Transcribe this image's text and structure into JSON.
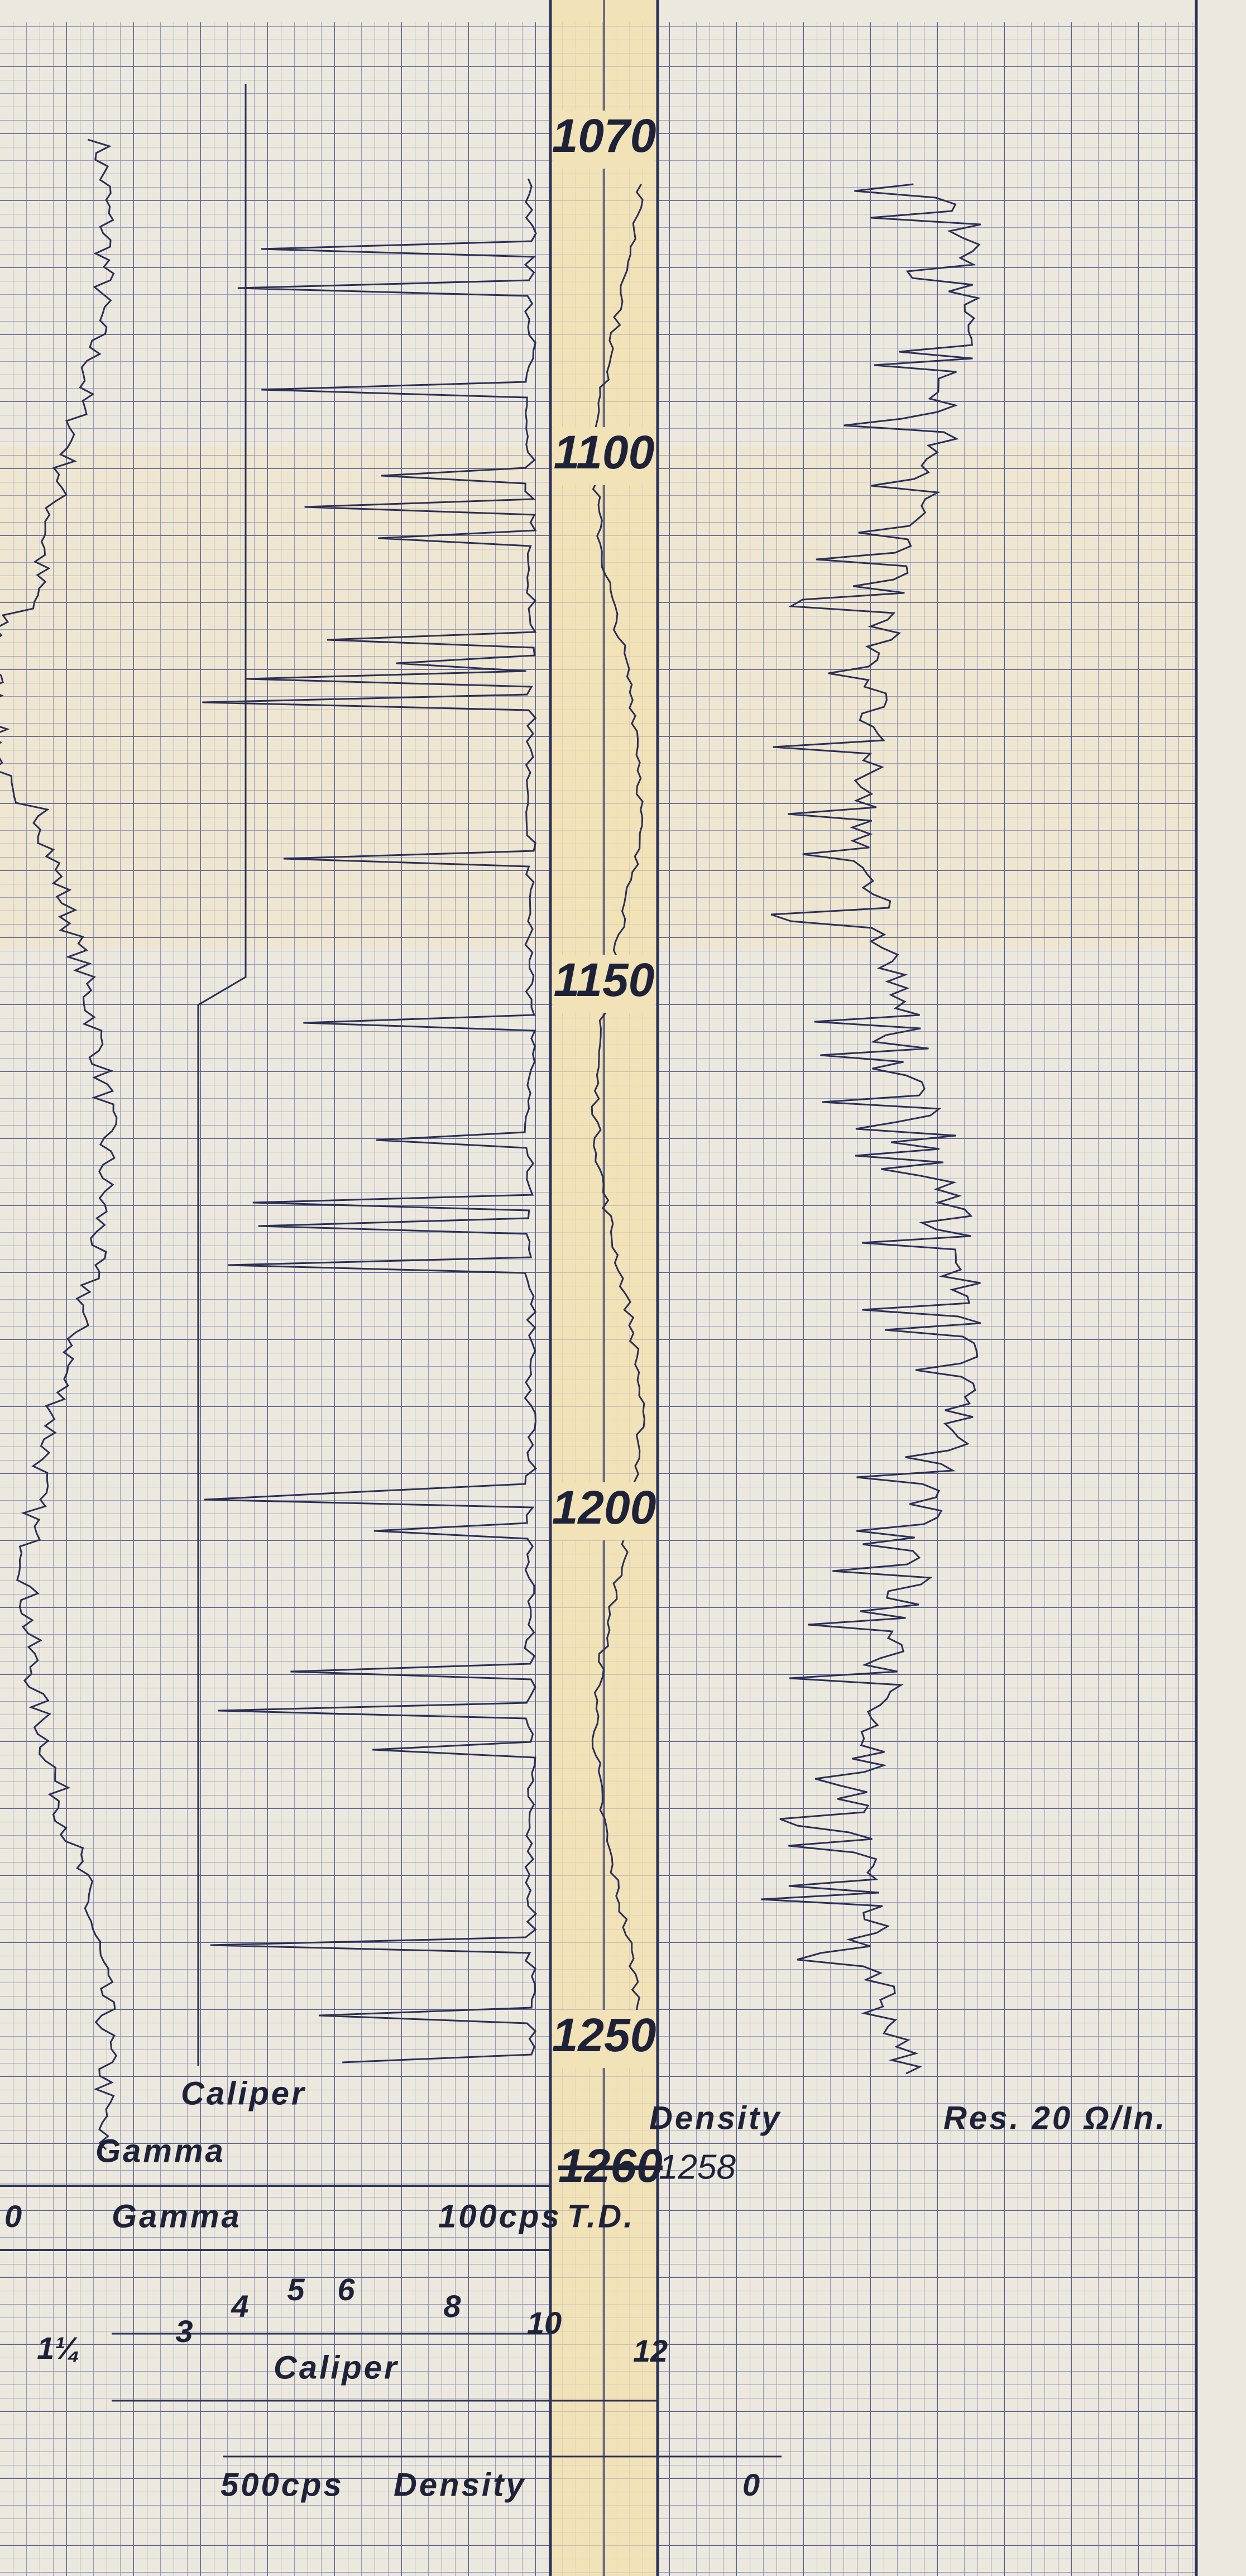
{
  "depth_track": {
    "labels": [
      1070,
      1100,
      1150,
      1200,
      1250
    ]
  },
  "curve_labels": {
    "caliper": "Caliper",
    "gamma": "Gamma",
    "density": "Density",
    "resistivity": "Res. 20 Ω/In.",
    "td_struck": "1260",
    "td": "1258"
  },
  "scale_header": {
    "gamma_left": "0",
    "gamma_name": "Gamma",
    "gamma_right": "100cps",
    "td_label": "T.D.",
    "caliper_ticks": [
      "1¼",
      "3",
      "4",
      "5",
      "6",
      "8",
      "10",
      "12"
    ],
    "caliper_name": "Caliper",
    "density_left": "500cps",
    "density_name": "Density",
    "density_right": "0"
  }
}
